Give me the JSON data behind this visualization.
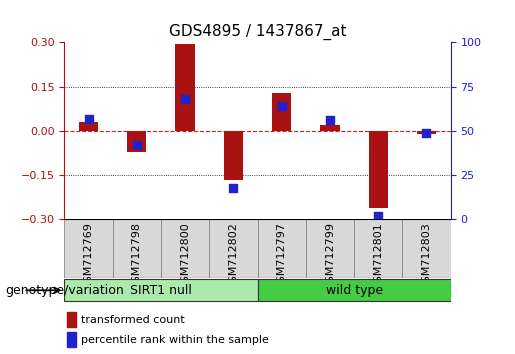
{
  "title": "GDS4895 / 1437867_at",
  "samples": [
    "GSM712769",
    "GSM712798",
    "GSM712800",
    "GSM712802",
    "GSM712797",
    "GSM712799",
    "GSM712801",
    "GSM712803"
  ],
  "transformed_count": [
    0.03,
    -0.07,
    0.295,
    -0.165,
    0.13,
    0.02,
    -0.26,
    -0.01
  ],
  "percentile_rank_pct": [
    57,
    42,
    68,
    18,
    64,
    56,
    2,
    49
  ],
  "groups": [
    {
      "label": "SIRT1 null",
      "start": 0,
      "end": 4,
      "color": "#aaeaaa"
    },
    {
      "label": "wild type",
      "start": 4,
      "end": 8,
      "color": "#44cc44"
    }
  ],
  "group_label": "genotype/variation",
  "ylim": [
    -0.3,
    0.3
  ],
  "yticks_left": [
    -0.3,
    -0.15,
    0,
    0.15,
    0.3
  ],
  "yticks_right_pct": [
    0,
    25,
    50,
    75,
    100
  ],
  "bar_color": "#aa1111",
  "dot_color": "#2222cc",
  "legend_bar_label": "transformed count",
  "legend_dot_label": "percentile rank within the sample",
  "zero_line_color": "#cc2222",
  "title_fontsize": 11,
  "tick_fontsize": 8,
  "label_fontsize": 9,
  "bar_width": 0.4,
  "dot_size": 30,
  "xtick_box_color": "#d8d8d8",
  "xtick_box_edge": "#888888"
}
